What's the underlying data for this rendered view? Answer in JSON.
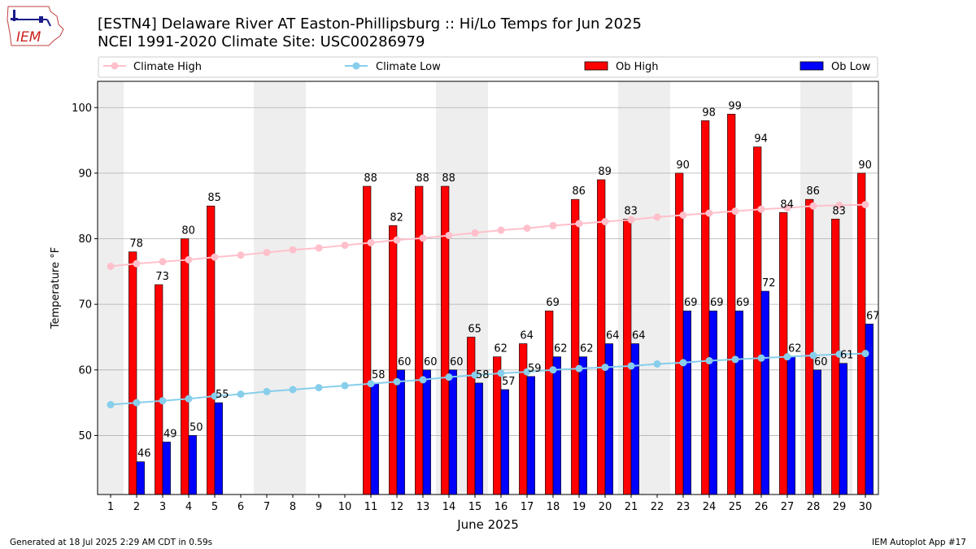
{
  "header": {
    "title": "[ESTN4] Delaware River  AT Easton-Phillipsburg :: Hi/Lo Temps for Jun 2025",
    "subtitle": "NCEI 1991-2020 Climate Site: USC00286979",
    "logo_text": "IEM"
  },
  "footer": {
    "generated": "Generated at 18 Jul 2025 2:29 AM CDT in 0.59s",
    "app": "IEM Autoplot App #17"
  },
  "colors": {
    "ob_high": "#ff0000",
    "ob_low": "#0000ff",
    "climate_high": "#ffc0cb",
    "climate_low": "#87ceeb",
    "weekend_band": "#eeeeee",
    "grid": "#b0b0b0"
  },
  "chart_data": {
    "type": "bar",
    "xlabel": "June 2025",
    "ylabel": "Temperature °F",
    "xlim": [
      0.5,
      30.5
    ],
    "ylim": [
      41,
      104
    ],
    "yticks": [
      50,
      60,
      70,
      80,
      90,
      100
    ],
    "grid": "horizontal",
    "legend_position": "top",
    "legend": [
      "Climate High",
      "Climate Low",
      "Ob High",
      "Ob Low"
    ],
    "shaded_days": [
      1,
      7,
      8,
      14,
      15,
      21,
      22,
      28,
      29
    ],
    "days": [
      1,
      2,
      3,
      4,
      5,
      6,
      7,
      8,
      9,
      10,
      11,
      12,
      13,
      14,
      15,
      16,
      17,
      18,
      19,
      20,
      21,
      22,
      23,
      24,
      25,
      26,
      27,
      28,
      29,
      30
    ],
    "day_labels": [
      "1",
      "2",
      "3",
      "4",
      "5",
      "6",
      "7",
      "8",
      "9",
      "10",
      "11",
      "12",
      "13",
      "14",
      "15",
      "16",
      "17",
      "18",
      "19",
      "20",
      "21",
      "22",
      "23",
      "24",
      "25",
      "26",
      "27",
      "28",
      "29",
      "30"
    ],
    "series": [
      {
        "name": "Ob High",
        "kind": "bar",
        "values": [
          null,
          78,
          73,
          80,
          85,
          null,
          null,
          null,
          null,
          null,
          88,
          82,
          88,
          88,
          65,
          62,
          64,
          69,
          86,
          89,
          83,
          null,
          90,
          98,
          99,
          94,
          84,
          86,
          83,
          90
        ],
        "labels": [
          "",
          "78",
          "73",
          "80",
          "85",
          "",
          "",
          "",
          "",
          "",
          "88",
          "82",
          "88",
          "88",
          "65",
          "62",
          "64",
          "69",
          "86",
          "89",
          "83",
          "",
          "90",
          "98",
          "99",
          "94",
          "84",
          "86",
          "83",
          "90"
        ]
      },
      {
        "name": "Ob Low",
        "kind": "bar",
        "values": [
          null,
          46,
          49,
          50,
          55,
          null,
          null,
          null,
          null,
          null,
          58,
          60,
          60,
          60,
          58,
          57,
          59,
          62,
          62,
          64,
          64,
          null,
          69,
          69,
          69,
          72,
          62,
          60,
          61,
          67
        ],
        "labels": [
          "",
          "46",
          "49",
          "50",
          "55",
          "",
          "",
          "",
          "",
          "",
          "58",
          "60",
          "60",
          "60",
          "58",
          "57",
          "59",
          "62",
          "62",
          "64",
          "64",
          "",
          "69",
          "69",
          "69",
          "72",
          "62",
          "60",
          "61",
          "67"
        ]
      },
      {
        "name": "Climate High",
        "kind": "line",
        "values": [
          75.8,
          76.2,
          76.5,
          76.8,
          77.2,
          77.5,
          77.9,
          78.3,
          78.6,
          79.0,
          79.4,
          79.8,
          80.1,
          80.5,
          80.9,
          81.3,
          81.6,
          82.0,
          82.3,
          82.6,
          82.9,
          83.3,
          83.6,
          83.9,
          84.2,
          84.5,
          84.7,
          85.0,
          85.1,
          85.2
        ]
      },
      {
        "name": "Climate Low",
        "kind": "line",
        "values": [
          54.7,
          55.0,
          55.3,
          55.6,
          56.0,
          56.3,
          56.7,
          57.0,
          57.3,
          57.6,
          57.9,
          58.2,
          58.5,
          58.9,
          59.2,
          59.5,
          59.7,
          60.0,
          60.2,
          60.4,
          60.6,
          60.9,
          61.1,
          61.4,
          61.6,
          61.8,
          62.0,
          62.2,
          62.4,
          62.5
        ]
      }
    ]
  }
}
